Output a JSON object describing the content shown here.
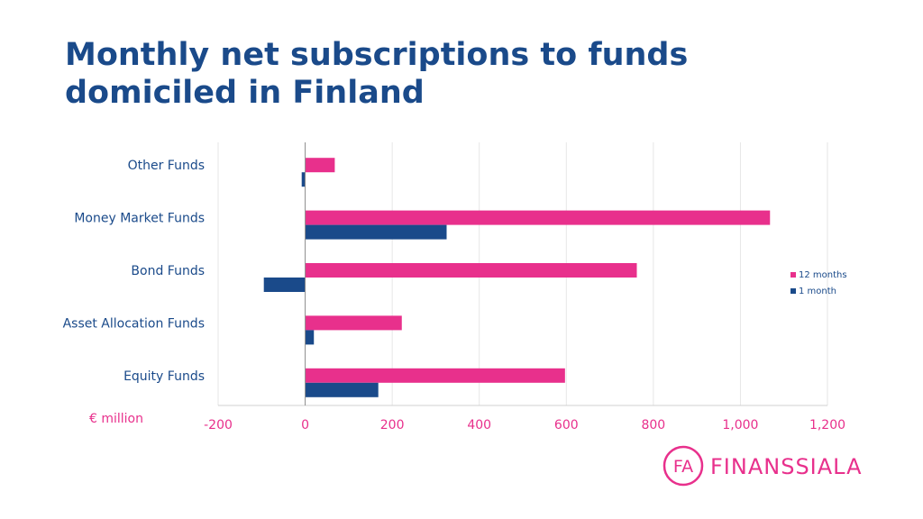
{
  "title_lines": [
    "Monthly net subscriptions to funds",
    "domiciled in Finland"
  ],
  "logo": {
    "mark": "FA",
    "name": "FINANSSIALA"
  },
  "colors": {
    "title": "#1a4a8a",
    "series_12m": "#e8308c",
    "series_1m": "#1a4a8a",
    "grid": "#e6e6e6"
  },
  "chart_data": {
    "type": "bar",
    "orientation": "horizontal",
    "categories": [
      "Other Funds",
      "Money Market Funds",
      "Bond Funds",
      "Asset Allocation Funds",
      "Equity Funds"
    ],
    "series": [
      {
        "name": "12 months",
        "color": "#e8308c",
        "values": [
          68,
          1068,
          762,
          222,
          597
        ]
      },
      {
        "name": "1 month",
        "color": "#1a4a8a",
        "values": [
          -8,
          325,
          -95,
          20,
          168
        ]
      }
    ],
    "unit_label": "€ million",
    "xlim": [
      -200,
      1200
    ],
    "ticks": [
      -200,
      0,
      200,
      400,
      600,
      800,
      1000,
      1200
    ],
    "tick_labels": [
      "-200",
      "0",
      "200",
      "400",
      "600",
      "800",
      "1,000",
      "1,200"
    ],
    "grid": true,
    "legend_position": "right"
  }
}
